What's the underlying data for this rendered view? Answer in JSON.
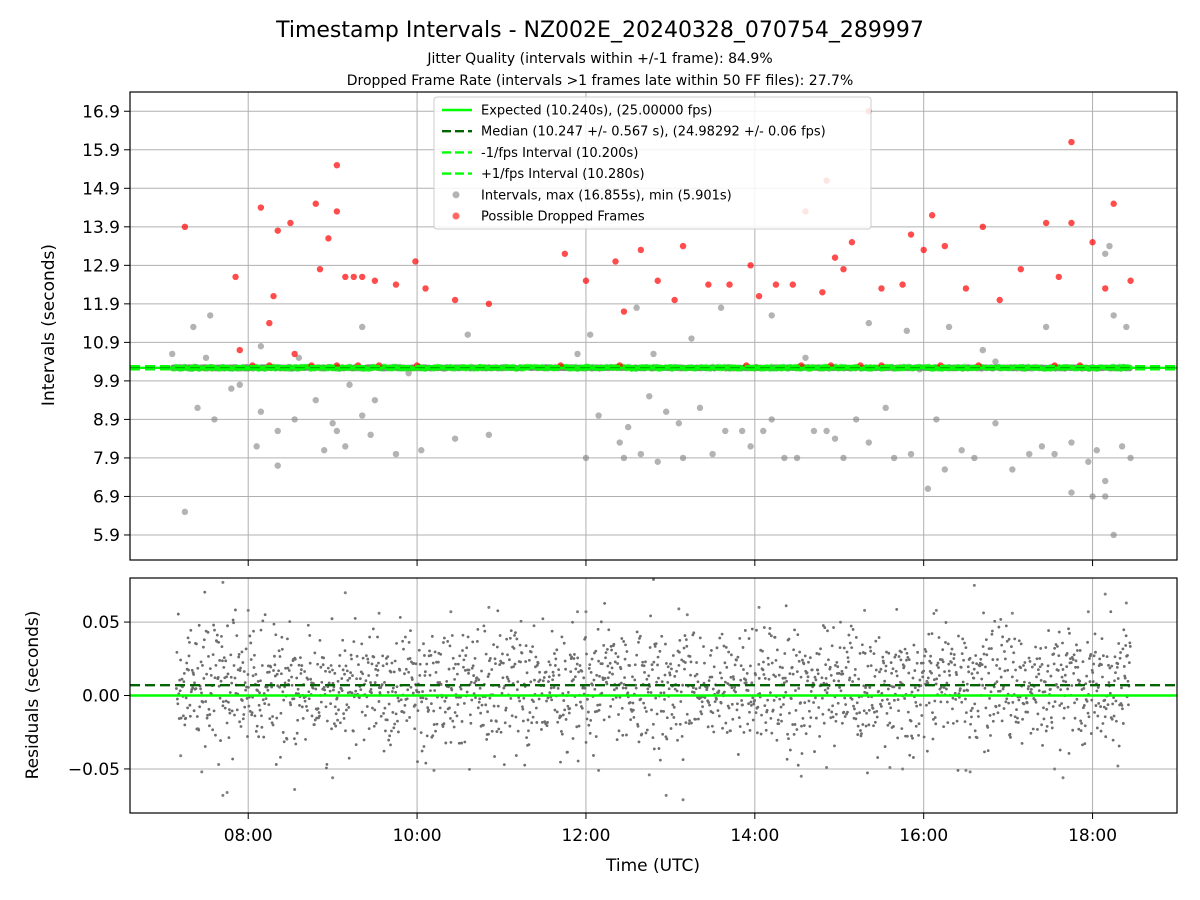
{
  "chart_data": [
    {
      "type": "scatter",
      "title": "Timestamp Intervals - NZ002E_20240328_070754_289997",
      "subtitle_lines": [
        "Jitter Quality (intervals within +/-1 frame): 84.9%",
        "Dropped Frame Rate (intervals >1 frames late within 50 FF files): 27.7%"
      ],
      "xlabel": "",
      "ylabel": "Intervals (seconds)",
      "xlim_hours": [
        6.6,
        19.0
      ],
      "ylim": [
        5.25,
        17.4
      ],
      "yticks": [
        {
          "v": 5.9,
          "label": "5.9"
        },
        {
          "v": 6.9,
          "label": "6.9"
        },
        {
          "v": 7.9,
          "label": "7.9"
        },
        {
          "v": 8.9,
          "label": "8.9"
        },
        {
          "v": 9.9,
          "label": "9.9"
        },
        {
          "v": 10.9,
          "label": "10.9"
        },
        {
          "v": 11.9,
          "label": "11.9"
        },
        {
          "v": 12.9,
          "label": "12.9"
        },
        {
          "v": 13.9,
          "label": "13.9"
        },
        {
          "v": 14.9,
          "label": "14.9"
        },
        {
          "v": 15.9,
          "label": "15.9"
        },
        {
          "v": 16.9,
          "label": "16.9"
        }
      ],
      "grid": true,
      "legend_position": "top-center",
      "legend": [
        {
          "label": "Expected (10.240s), (25.00000 fps)",
          "style": "solid-line",
          "color": "#00ff00"
        },
        {
          "label": "Median (10.247 +/- 0.567 s), (24.98292 +/- 0.06 fps)",
          "style": "dashed-line",
          "color": "#006400"
        },
        {
          "label": "-1/fps Interval (10.200s)",
          "style": "dashed-line",
          "color": "#00ff00"
        },
        {
          "label": "+1/fps Interval (10.280s)",
          "style": "dashed-line",
          "color": "#00ff00"
        },
        {
          "label": "Intervals, max (16.855s), min (5.901s)",
          "style": "marker",
          "color": "#808080"
        },
        {
          "label": "Possible Dropped Frames",
          "style": "marker",
          "color": "#ff0000"
        }
      ],
      "reference_lines": [
        {
          "y": 10.24,
          "style": "solid",
          "color": "#00ff00"
        },
        {
          "y": 10.247,
          "style": "dashed",
          "color": "#006400"
        },
        {
          "y": 10.2,
          "style": "dashed",
          "color": "#00ff00"
        },
        {
          "y": 10.28,
          "style": "dashed",
          "color": "#00ff00"
        }
      ],
      "series": [
        {
          "name": "Intervals, max (16.855s), min (5.901s)",
          "color": "#808080",
          "points": [
            [
              7.25,
              6.5
            ],
            [
              7.4,
              9.2
            ],
            [
              7.5,
              10.5
            ],
            [
              7.6,
              8.9
            ],
            [
              7.8,
              9.7
            ],
            [
              7.9,
              9.8
            ],
            [
              8.1,
              8.2
            ],
            [
              8.15,
              9.1
            ],
            [
              8.35,
              7.7
            ],
            [
              8.35,
              8.6
            ],
            [
              8.55,
              8.9
            ],
            [
              8.8,
              9.4
            ],
            [
              8.9,
              8.1
            ],
            [
              9.0,
              8.8
            ],
            [
              9.05,
              8.6
            ],
            [
              9.15,
              8.2
            ],
            [
              9.2,
              9.8
            ],
            [
              9.35,
              9.0
            ],
            [
              9.45,
              8.5
            ],
            [
              9.5,
              9.4
            ],
            [
              9.75,
              8.0
            ],
            [
              10.05,
              8.1
            ],
            [
              10.45,
              8.4
            ],
            [
              10.85,
              8.5
            ],
            [
              10.6,
              11.1
            ],
            [
              7.35,
              11.3
            ],
            [
              7.55,
              11.6
            ],
            [
              7.1,
              10.6
            ],
            [
              8.15,
              10.8
            ],
            [
              9.35,
              11.3
            ],
            [
              12.0,
              7.9
            ],
            [
              12.05,
              11.1
            ],
            [
              12.15,
              9.0
            ],
            [
              12.4,
              8.3
            ],
            [
              12.45,
              7.9
            ],
            [
              12.5,
              8.7
            ],
            [
              12.65,
              8.0
            ],
            [
              12.75,
              9.5
            ],
            [
              12.85,
              7.8
            ],
            [
              12.95,
              9.1
            ],
            [
              13.1,
              8.8
            ],
            [
              13.15,
              7.9
            ],
            [
              13.35,
              9.2
            ],
            [
              13.5,
              8.0
            ],
            [
              13.65,
              8.6
            ],
            [
              13.85,
              8.6
            ],
            [
              13.95,
              8.2
            ],
            [
              14.1,
              8.6
            ],
            [
              14.2,
              8.9
            ],
            [
              14.35,
              7.9
            ],
            [
              14.5,
              7.9
            ],
            [
              14.7,
              8.6
            ],
            [
              14.85,
              8.6
            ],
            [
              14.95,
              8.4
            ],
            [
              15.05,
              7.9
            ],
            [
              15.2,
              8.9
            ],
            [
              15.35,
              8.3
            ],
            [
              15.55,
              9.2
            ],
            [
              15.65,
              7.9
            ],
            [
              15.85,
              8.0
            ],
            [
              16.05,
              7.1
            ],
            [
              16.15,
              8.9
            ],
            [
              16.25,
              7.6
            ],
            [
              16.45,
              8.1
            ],
            [
              16.6,
              7.9
            ],
            [
              16.85,
              8.8
            ],
            [
              17.05,
              7.6
            ],
            [
              17.25,
              8.0
            ],
            [
              17.4,
              8.2
            ],
            [
              17.55,
              8.0
            ],
            [
              17.75,
              8.3
            ],
            [
              17.95,
              7.8
            ],
            [
              18.05,
              8.1
            ],
            [
              18.15,
              6.9
            ],
            [
              18.25,
              5.9
            ],
            [
              18.35,
              8.2
            ],
            [
              18.45,
              7.9
            ],
            [
              18.0,
              6.9
            ],
            [
              18.15,
              7.3
            ],
            [
              17.75,
              7.0
            ],
            [
              12.6,
              11.8
            ],
            [
              13.6,
              11.8
            ],
            [
              14.2,
              11.6
            ],
            [
              15.35,
              11.4
            ],
            [
              15.8,
              11.2
            ],
            [
              16.3,
              11.3
            ],
            [
              16.7,
              10.7
            ],
            [
              17.45,
              11.3
            ],
            [
              18.25,
              11.6
            ],
            [
              18.4,
              11.3
            ],
            [
              18.2,
              13.4
            ],
            [
              18.15,
              13.2
            ],
            [
              13.25,
              11.0
            ],
            [
              14.6,
              10.5
            ],
            [
              15.95,
              10.2
            ],
            [
              16.85,
              10.4
            ],
            [
              11.9,
              10.6
            ],
            [
              12.8,
              10.6
            ],
            [
              8.6,
              10.5
            ],
            [
              9.9,
              10.1
            ]
          ]
        },
        {
          "name": "Possible Dropped Frames",
          "color": "#ff0000",
          "points": [
            [
              7.25,
              13.9
            ],
            [
              7.85,
              12.6
            ],
            [
              8.15,
              14.4
            ],
            [
              8.25,
              11.4
            ],
            [
              8.3,
              12.1
            ],
            [
              8.35,
              13.8
            ],
            [
              8.5,
              14.0
            ],
            [
              8.55,
              10.6
            ],
            [
              8.8,
              14.5
            ],
            [
              8.85,
              12.8
            ],
            [
              8.95,
              13.6
            ],
            [
              9.05,
              14.3
            ],
            [
              9.05,
              15.5
            ],
            [
              9.15,
              12.6
            ],
            [
              9.25,
              12.6
            ],
            [
              9.35,
              12.6
            ],
            [
              9.5,
              12.5
            ],
            [
              9.75,
              12.4
            ],
            [
              9.98,
              13.0
            ],
            [
              10.1,
              12.3
            ],
            [
              10.45,
              12.0
            ],
            [
              10.85,
              11.9
            ],
            [
              11.75,
              13.2
            ],
            [
              12.0,
              12.5
            ],
            [
              12.35,
              13.0
            ],
            [
              12.45,
              11.7
            ],
            [
              12.65,
              13.3
            ],
            [
              12.85,
              12.5
            ],
            [
              13.05,
              12.0
            ],
            [
              13.15,
              13.4
            ],
            [
              13.45,
              12.4
            ],
            [
              13.7,
              12.4
            ],
            [
              13.95,
              12.9
            ],
            [
              14.05,
              12.1
            ],
            [
              14.25,
              12.4
            ],
            [
              14.45,
              12.4
            ],
            [
              14.6,
              14.3
            ],
            [
              14.8,
              12.2
            ],
            [
              14.85,
              15.1
            ],
            [
              14.95,
              13.1
            ],
            [
              15.05,
              12.8
            ],
            [
              15.15,
              13.5
            ],
            [
              15.35,
              16.9
            ],
            [
              15.5,
              12.3
            ],
            [
              15.75,
              12.4
            ],
            [
              15.85,
              13.7
            ],
            [
              16.0,
              13.3
            ],
            [
              16.1,
              14.2
            ],
            [
              16.25,
              13.4
            ],
            [
              16.5,
              12.3
            ],
            [
              16.7,
              13.9
            ],
            [
              16.9,
              12.0
            ],
            [
              17.15,
              12.8
            ],
            [
              17.45,
              14.0
            ],
            [
              17.6,
              12.6
            ],
            [
              17.75,
              16.1
            ],
            [
              17.75,
              14.0
            ],
            [
              18.0,
              13.5
            ],
            [
              18.15,
              12.3
            ],
            [
              18.25,
              14.5
            ],
            [
              18.45,
              12.5
            ],
            [
              7.9,
              10.7
            ],
            [
              8.05,
              10.3
            ],
            [
              8.25,
              10.3
            ],
            [
              8.75,
              10.3
            ],
            [
              9.05,
              10.3
            ],
            [
              9.3,
              10.3
            ],
            [
              9.55,
              10.3
            ],
            [
              10.0,
              10.3
            ],
            [
              11.7,
              10.3
            ],
            [
              12.4,
              10.3
            ],
            [
              13.9,
              10.3
            ],
            [
              14.55,
              10.3
            ],
            [
              14.9,
              10.3
            ],
            [
              15.25,
              10.3
            ],
            [
              15.5,
              10.3
            ],
            [
              16.2,
              10.3
            ],
            [
              16.65,
              10.3
            ],
            [
              17.55,
              10.3
            ],
            [
              17.85,
              10.3
            ]
          ]
        }
      ]
    },
    {
      "type": "scatter",
      "xlabel": "Time (UTC)",
      "ylabel": "Residuals (seconds)",
      "xlim_hours": [
        6.6,
        19.0
      ],
      "ylim": [
        -0.08,
        0.08
      ],
      "yticks": [
        {
          "v": -0.05,
          "label": "−0.05"
        },
        {
          "v": 0.0,
          "label": "0.00"
        },
        {
          "v": 0.05,
          "label": "0.05"
        }
      ],
      "xticks": [
        {
          "v": 8,
          "label": "08:00"
        },
        {
          "v": 10,
          "label": "10:00"
        },
        {
          "v": 12,
          "label": "12:00"
        },
        {
          "v": 14,
          "label": "14:00"
        },
        {
          "v": 16,
          "label": "16:00"
        },
        {
          "v": 18,
          "label": "18:00"
        }
      ],
      "grid": true,
      "reference_lines": [
        {
          "y": 0.0,
          "style": "solid",
          "color": "#00ff00"
        },
        {
          "y": 0.007,
          "style": "dashed",
          "color": "#006400"
        }
      ],
      "series": [
        {
          "color": "#808080",
          "points": [
            [
              7.2,
              -0.041
            ],
            [
              7.45,
              -0.052
            ],
            [
              7.65,
              -0.047
            ],
            [
              7.7,
              -0.068
            ],
            [
              7.75,
              -0.066
            ],
            [
              7.7,
              0.077
            ],
            [
              8.55,
              -0.064
            ],
            [
              9.0,
              -0.056
            ],
            [
              10.2,
              -0.051
            ],
            [
              12.0,
              0.057
            ],
            [
              12.15,
              -0.051
            ],
            [
              12.75,
              -0.054
            ],
            [
              12.8,
              0.079
            ],
            [
              12.95,
              -0.068
            ],
            [
              13.15,
              -0.071
            ],
            [
              13.1,
              0.059
            ],
            [
              14.55,
              -0.055
            ],
            [
              14.85,
              -0.049
            ],
            [
              15.6,
              -0.049
            ],
            [
              15.75,
              -0.05
            ],
            [
              16.5,
              -0.051
            ],
            [
              16.6,
              0.075
            ],
            [
              16.55,
              -0.052
            ],
            [
              17.55,
              -0.05
            ],
            [
              17.65,
              -0.056
            ],
            [
              18.15,
              0.069
            ],
            [
              18.3,
              -0.048
            ],
            [
              18.4,
              0.063
            ],
            [
              9.15,
              0.07
            ],
            [
              10.85,
              0.06
            ],
            [
              11.9,
              0.057
            ],
            [
              13.2,
              0.055
            ],
            [
              14.05,
              0.06
            ],
            [
              15.3,
              0.058
            ],
            [
              16.15,
              0.058
            ],
            [
              17.05,
              0.056
            ],
            [
              17.95,
              0.057
            ],
            [
              8.0,
              0.058
            ],
            [
              9.55,
              0.056
            ],
            [
              10.4,
              0.057
            ]
          ]
        }
      ]
    }
  ]
}
